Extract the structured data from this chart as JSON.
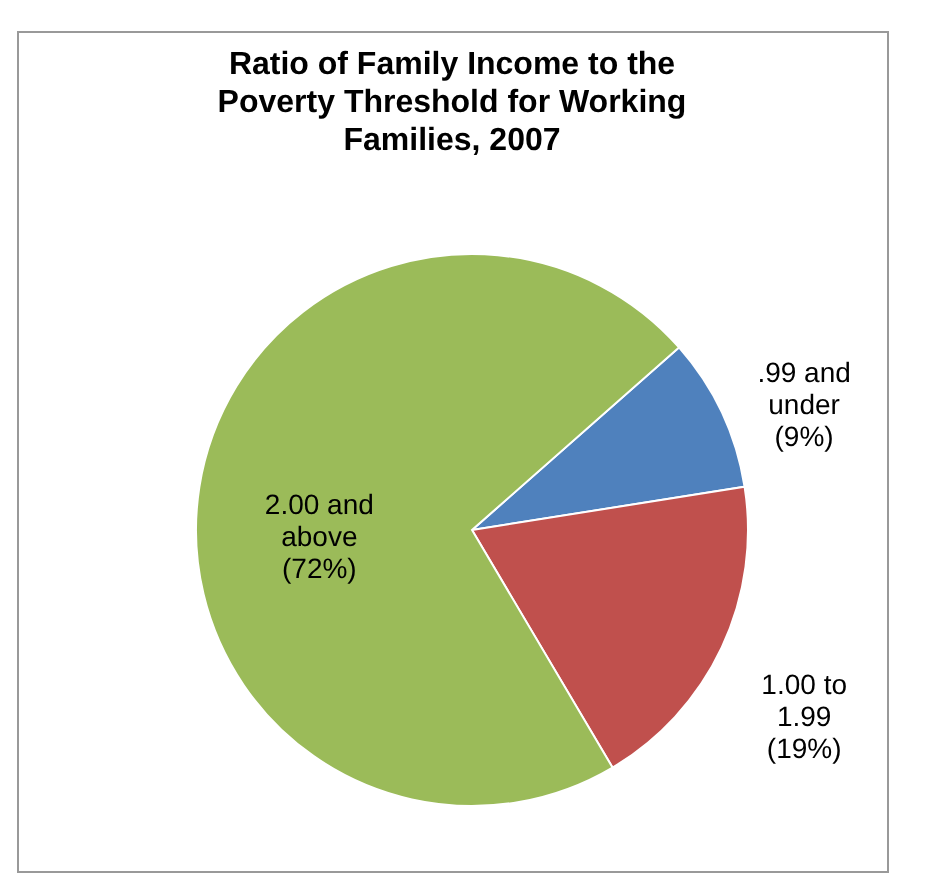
{
  "chart_data": {
    "type": "pie",
    "title": "Ratio of Family Income to the Poverty Threshold for Working Families, 2007",
    "categories": [
      ".99 and under",
      "1.00 to 1.99",
      "2.00 and above"
    ],
    "values": [
      9,
      19,
      72
    ],
    "colors": [
      "#4f81bd",
      "#c0504d",
      "#9bbb59"
    ],
    "value_labels": [
      "(9%)",
      "(19%)",
      "(72%)"
    ]
  }
}
